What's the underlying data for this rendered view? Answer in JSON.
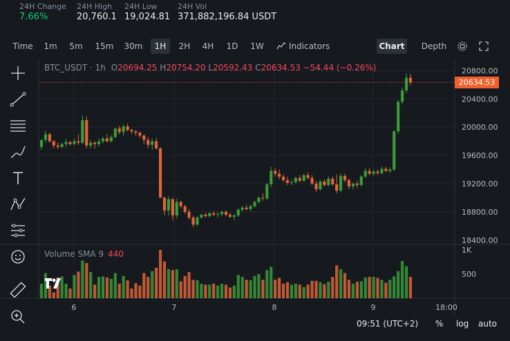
{
  "stats": [
    {
      "label": "24H Change",
      "value": "7.66%",
      "green": true
    },
    {
      "label": "24H High",
      "value": "20,760.1",
      "green": false
    },
    {
      "label": "24H Low",
      "value": "19,024.81",
      "green": false
    },
    {
      "label": "24H Vol",
      "value": "371,882,196.84 USDT",
      "green": false
    }
  ],
  "toolbar": {
    "intervals": [
      "Time",
      "1m",
      "5m",
      "15m",
      "30m",
      "1H",
      "2H",
      "4H",
      "1D",
      "1W"
    ],
    "selected_interval": "1H",
    "indicators_label": "Indicators",
    "chart_label": "Chart",
    "depth_label": "Depth"
  },
  "legend": {
    "symbol": "BTC_USDT · 1h",
    "o_label": "O",
    "o": "20694.25",
    "h_label": "H",
    "h": "20754.20",
    "l_label": "L",
    "l": "20592.43",
    "c_label": "C",
    "c": "20634.53",
    "change": "−54.44 (−0.26%)"
  },
  "current_price": "20634.53",
  "volume_indicator": {
    "label": "Volume SMA 9",
    "value": "440"
  },
  "bottom": {
    "time": "09:51 (UTC+2)",
    "percent": "%",
    "log": "log",
    "auto": "auto"
  },
  "colors": {
    "up": "#3b9c39",
    "down": "#e0653a",
    "bg": "#161a1e"
  },
  "icons": [
    "crosshair-icon",
    "trend-line-icon",
    "horizontal-lines-icon",
    "brush-icon",
    "text-icon",
    "pattern-icon",
    "measure-icon",
    "emoji-icon",
    "ruler-icon",
    "zoom-in-icon",
    "indicators-icon",
    "settings-icon",
    "fullscreen-icon"
  ],
  "chart_data": {
    "type": "candlestick",
    "x_ticks": [
      "6",
      "7",
      "8",
      "9",
      "18:00"
    ],
    "price_ticks": [
      20800.0,
      20400.0,
      20000.0,
      19600.0,
      19200.0,
      18800.0,
      18400.0
    ],
    "ylim": [
      18340,
      20960
    ],
    "volume_ticks": [
      "1K",
      "500"
    ],
    "volume_ylim": [
      0,
      1000
    ],
    "candles": [
      {
        "o": 19720,
        "h": 19820,
        "l": 19680,
        "c": 19820,
        "v": 300
      },
      {
        "o": 19820,
        "h": 19950,
        "l": 19780,
        "c": 19900,
        "v": 520
      },
      {
        "o": 19900,
        "h": 19920,
        "l": 19780,
        "c": 19800,
        "v": 260
      },
      {
        "o": 19800,
        "h": 19820,
        "l": 19700,
        "c": 19740,
        "v": 120
      },
      {
        "o": 19740,
        "h": 19780,
        "l": 19690,
        "c": 19720,
        "v": 430
      },
      {
        "o": 19720,
        "h": 19780,
        "l": 19700,
        "c": 19760,
        "v": 450
      },
      {
        "o": 19760,
        "h": 19830,
        "l": 19720,
        "c": 19790,
        "v": 300
      },
      {
        "o": 19790,
        "h": 19800,
        "l": 19740,
        "c": 19760,
        "v": 200
      },
      {
        "o": 19760,
        "h": 19840,
        "l": 19740,
        "c": 19800,
        "v": 480
      },
      {
        "o": 19800,
        "h": 19900,
        "l": 19750,
        "c": 19780,
        "v": 550
      },
      {
        "o": 19780,
        "h": 20170,
        "l": 19760,
        "c": 20100,
        "v": 780
      },
      {
        "o": 20100,
        "h": 20150,
        "l": 19700,
        "c": 19740,
        "v": 730
      },
      {
        "o": 19740,
        "h": 19820,
        "l": 19700,
        "c": 19780,
        "v": 540
      },
      {
        "o": 19780,
        "h": 19800,
        "l": 19700,
        "c": 19760,
        "v": 280
      },
      {
        "o": 19760,
        "h": 19840,
        "l": 19720,
        "c": 19800,
        "v": 440
      },
      {
        "o": 19800,
        "h": 19860,
        "l": 19770,
        "c": 19840,
        "v": 450
      },
      {
        "o": 19840,
        "h": 19900,
        "l": 19780,
        "c": 19800,
        "v": 430
      },
      {
        "o": 19800,
        "h": 19890,
        "l": 19780,
        "c": 19860,
        "v": 400
      },
      {
        "o": 19860,
        "h": 19990,
        "l": 19840,
        "c": 19980,
        "v": 520
      },
      {
        "o": 19980,
        "h": 20020,
        "l": 19900,
        "c": 19930,
        "v": 300
      },
      {
        "o": 19930,
        "h": 20040,
        "l": 19880,
        "c": 20010,
        "v": 460
      },
      {
        "o": 20010,
        "h": 20050,
        "l": 19940,
        "c": 19960,
        "v": 370
      },
      {
        "o": 19960,
        "h": 19980,
        "l": 19900,
        "c": 19940,
        "v": 200
      },
      {
        "o": 19940,
        "h": 19960,
        "l": 19880,
        "c": 19920,
        "v": 310
      },
      {
        "o": 19920,
        "h": 19940,
        "l": 19850,
        "c": 19880,
        "v": 260
      },
      {
        "o": 19880,
        "h": 19900,
        "l": 19760,
        "c": 19820,
        "v": 520
      },
      {
        "o": 19820,
        "h": 19860,
        "l": 19700,
        "c": 19750,
        "v": 440
      },
      {
        "o": 19750,
        "h": 19840,
        "l": 19680,
        "c": 19800,
        "v": 560
      },
      {
        "o": 19800,
        "h": 19850,
        "l": 19680,
        "c": 19700,
        "v": 630
      },
      {
        "o": 19700,
        "h": 19720,
        "l": 19000,
        "c": 19000,
        "v": 1000
      },
      {
        "o": 19000,
        "h": 19020,
        "l": 18750,
        "c": 18820,
        "v": 760
      },
      {
        "o": 18820,
        "h": 19020,
        "l": 18740,
        "c": 18980,
        "v": 600
      },
      {
        "o": 18980,
        "h": 19000,
        "l": 18680,
        "c": 18750,
        "v": 580
      },
      {
        "o": 18750,
        "h": 18990,
        "l": 18700,
        "c": 18940,
        "v": 600
      },
      {
        "o": 18940,
        "h": 18960,
        "l": 18850,
        "c": 18880,
        "v": 350
      },
      {
        "o": 18880,
        "h": 18900,
        "l": 18770,
        "c": 18800,
        "v": 460
      },
      {
        "o": 18800,
        "h": 18840,
        "l": 18690,
        "c": 18720,
        "v": 540
      },
      {
        "o": 18720,
        "h": 18750,
        "l": 18580,
        "c": 18620,
        "v": 380
      },
      {
        "o": 18620,
        "h": 18740,
        "l": 18600,
        "c": 18720,
        "v": 370
      },
      {
        "o": 18720,
        "h": 18770,
        "l": 18700,
        "c": 18760,
        "v": 300
      },
      {
        "o": 18760,
        "h": 18790,
        "l": 18720,
        "c": 18740,
        "v": 280
      },
      {
        "o": 18740,
        "h": 18800,
        "l": 18720,
        "c": 18780,
        "v": 280
      },
      {
        "o": 18780,
        "h": 18810,
        "l": 18740,
        "c": 18760,
        "v": 300
      },
      {
        "o": 18760,
        "h": 18800,
        "l": 18720,
        "c": 18770,
        "v": 260
      },
      {
        "o": 18770,
        "h": 18820,
        "l": 18740,
        "c": 18800,
        "v": 300
      },
      {
        "o": 18800,
        "h": 18820,
        "l": 18740,
        "c": 18760,
        "v": 280
      },
      {
        "o": 18760,
        "h": 18790,
        "l": 18710,
        "c": 18730,
        "v": 220
      },
      {
        "o": 18730,
        "h": 18770,
        "l": 18680,
        "c": 18750,
        "v": 260
      },
      {
        "o": 18750,
        "h": 18850,
        "l": 18730,
        "c": 18830,
        "v": 480
      },
      {
        "o": 18830,
        "h": 18880,
        "l": 18800,
        "c": 18860,
        "v": 440
      },
      {
        "o": 18860,
        "h": 18900,
        "l": 18820,
        "c": 18840,
        "v": 380
      },
      {
        "o": 18840,
        "h": 18900,
        "l": 18810,
        "c": 18880,
        "v": 370
      },
      {
        "o": 18880,
        "h": 18960,
        "l": 18860,
        "c": 18940,
        "v": 460
      },
      {
        "o": 18940,
        "h": 19020,
        "l": 18920,
        "c": 19000,
        "v": 500
      },
      {
        "o": 19000,
        "h": 19060,
        "l": 18960,
        "c": 18990,
        "v": 380
      },
      {
        "o": 18990,
        "h": 19210,
        "l": 18970,
        "c": 19190,
        "v": 580
      },
      {
        "o": 19190,
        "h": 19440,
        "l": 19150,
        "c": 19380,
        "v": 650
      },
      {
        "o": 19380,
        "h": 19420,
        "l": 19300,
        "c": 19340,
        "v": 380
      },
      {
        "o": 19340,
        "h": 19400,
        "l": 19260,
        "c": 19300,
        "v": 420
      },
      {
        "o": 19300,
        "h": 19330,
        "l": 19220,
        "c": 19250,
        "v": 300
      },
      {
        "o": 19250,
        "h": 19300,
        "l": 19180,
        "c": 19210,
        "v": 330
      },
      {
        "o": 19210,
        "h": 19260,
        "l": 19180,
        "c": 19220,
        "v": 280
      },
      {
        "o": 19220,
        "h": 19300,
        "l": 19200,
        "c": 19280,
        "v": 300
      },
      {
        "o": 19280,
        "h": 19320,
        "l": 19220,
        "c": 19240,
        "v": 280
      },
      {
        "o": 19240,
        "h": 19340,
        "l": 19230,
        "c": 19320,
        "v": 230
      },
      {
        "o": 19320,
        "h": 19360,
        "l": 19260,
        "c": 19280,
        "v": 280
      },
      {
        "o": 19280,
        "h": 19320,
        "l": 19180,
        "c": 19200,
        "v": 360
      },
      {
        "o": 19200,
        "h": 19240,
        "l": 19080,
        "c": 19120,
        "v": 360
      },
      {
        "o": 19120,
        "h": 19250,
        "l": 19100,
        "c": 19230,
        "v": 330
      },
      {
        "o": 19230,
        "h": 19260,
        "l": 19160,
        "c": 19180,
        "v": 290
      },
      {
        "o": 19180,
        "h": 19300,
        "l": 19160,
        "c": 19270,
        "v": 340
      },
      {
        "o": 19270,
        "h": 19300,
        "l": 19170,
        "c": 19190,
        "v": 440
      },
      {
        "o": 19190,
        "h": 19330,
        "l": 19060,
        "c": 19100,
        "v": 680
      },
      {
        "o": 19100,
        "h": 19350,
        "l": 19080,
        "c": 19310,
        "v": 600
      },
      {
        "o": 19310,
        "h": 19340,
        "l": 19220,
        "c": 19250,
        "v": 520
      },
      {
        "o": 19250,
        "h": 19270,
        "l": 19120,
        "c": 19160,
        "v": 380
      },
      {
        "o": 19160,
        "h": 19220,
        "l": 19120,
        "c": 19200,
        "v": 300
      },
      {
        "o": 19200,
        "h": 19240,
        "l": 19140,
        "c": 19180,
        "v": 340
      },
      {
        "o": 19180,
        "h": 19320,
        "l": 19160,
        "c": 19300,
        "v": 350
      },
      {
        "o": 19300,
        "h": 19420,
        "l": 19280,
        "c": 19380,
        "v": 430
      },
      {
        "o": 19380,
        "h": 19420,
        "l": 19320,
        "c": 19340,
        "v": 440
      },
      {
        "o": 19340,
        "h": 19400,
        "l": 19310,
        "c": 19370,
        "v": 440
      },
      {
        "o": 19370,
        "h": 19400,
        "l": 19320,
        "c": 19350,
        "v": 420
      },
      {
        "o": 19350,
        "h": 19440,
        "l": 19330,
        "c": 19410,
        "v": 380
      },
      {
        "o": 19410,
        "h": 19440,
        "l": 19360,
        "c": 19380,
        "v": 320
      },
      {
        "o": 19380,
        "h": 19430,
        "l": 19350,
        "c": 19400,
        "v": 380
      },
      {
        "o": 19400,
        "h": 19960,
        "l": 19380,
        "c": 19940,
        "v": 450
      },
      {
        "o": 19940,
        "h": 20380,
        "l": 19900,
        "c": 20360,
        "v": 560
      },
      {
        "o": 20360,
        "h": 20560,
        "l": 20320,
        "c": 20520,
        "v": 770
      },
      {
        "o": 20520,
        "h": 20760,
        "l": 20480,
        "c": 20700,
        "v": 660
      },
      {
        "o": 20700,
        "h": 20754,
        "l": 20592,
        "c": 20634,
        "v": 440
      }
    ]
  }
}
